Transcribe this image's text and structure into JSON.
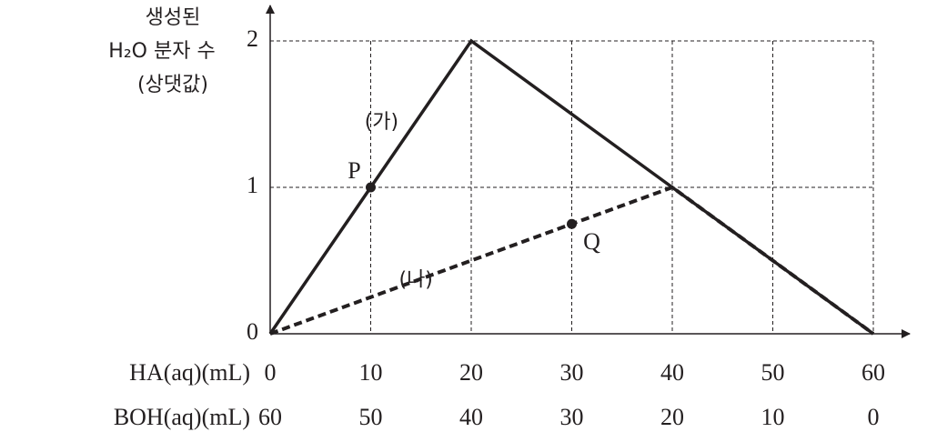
{
  "chart_data": {
    "type": "line",
    "y_label_lines": [
      "생성된",
      "H₂O 분자 수",
      "(상댓값)"
    ],
    "x_label": "HA(aq)(mL)",
    "x2_label": "BOH(aq)(mL)",
    "xlim": [
      0,
      60
    ],
    "xticks": [
      0,
      10,
      20,
      30,
      40,
      50,
      60
    ],
    "x2lim": [
      60,
      0
    ],
    "x2ticks": [
      60,
      50,
      40,
      30,
      20,
      10,
      0
    ],
    "ylim": [
      0,
      2
    ],
    "yticks": [
      0,
      1,
      2
    ],
    "grid": true,
    "series": [
      {
        "name": "(가)",
        "color": "#231f20",
        "style": "solid",
        "x": [
          0,
          20,
          60
        ],
        "values": [
          0,
          2,
          0
        ]
      },
      {
        "name": "(나)",
        "color": "#231f20",
        "style": "dashed",
        "x": [
          0,
          40,
          60
        ],
        "values": [
          0,
          1,
          0
        ]
      }
    ],
    "points": [
      {
        "label": "P",
        "x": 10,
        "y": 1
      },
      {
        "label": "Q",
        "x": 30,
        "y": 0.75
      }
    ]
  }
}
